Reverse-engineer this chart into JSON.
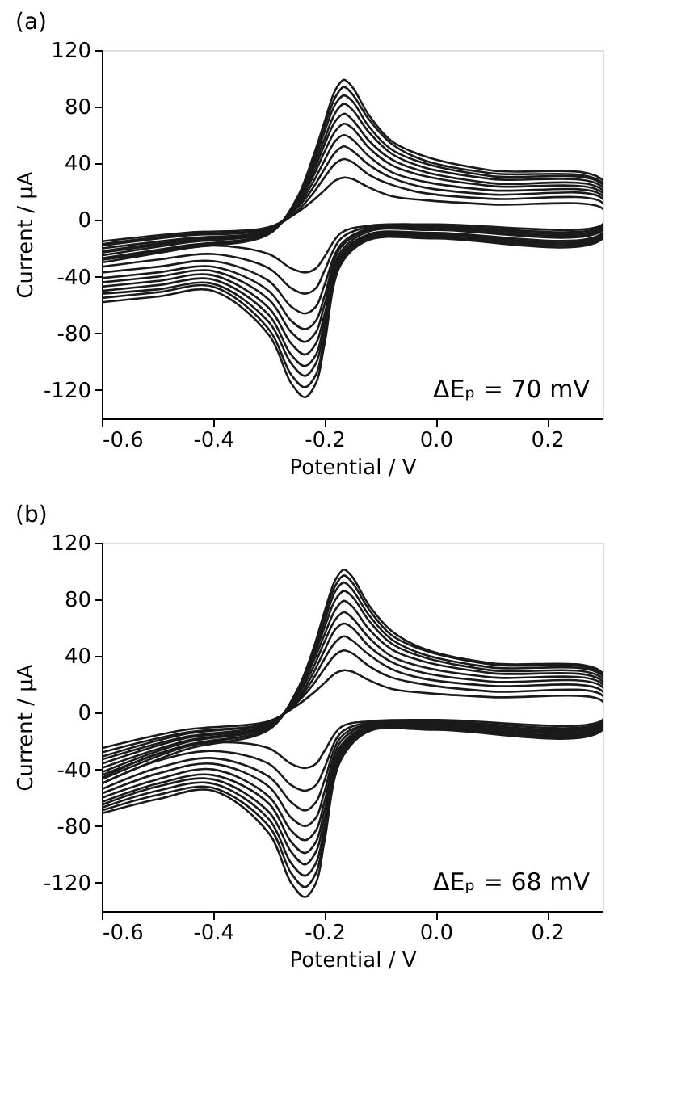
{
  "chart_data": [
    {
      "type": "line",
      "title": "(a)",
      "xlabel": "Potential / V",
      "ylabel": "Current / μA",
      "annotations": [
        "ΔEₚ = 70 mV"
      ],
      "xlim": [
        -0.6,
        0.3
      ],
      "ylim": [
        -140,
        120
      ],
      "xticks": [
        -0.6,
        -0.4,
        -0.2,
        {
          "value": 0,
          "label": "0.0"
        },
        0.2
      ],
      "yticks": [
        -120,
        -80,
        -40,
        0,
        40,
        80,
        120
      ],
      "grid": false,
      "x": [
        -0.6,
        -0.45,
        -0.3,
        -0.25,
        -0.22,
        -0.2,
        -0.18,
        -0.165,
        -0.15,
        -0.12,
        -0.08,
        -0.02,
        0.1,
        0.3,
        0.3,
        0.0,
        -0.12,
        -0.17,
        -0.2,
        -0.215,
        -0.235,
        -0.26,
        -0.3,
        -0.4,
        -0.5,
        -0.6
      ],
      "series": [
        {
          "color": "#1a1a1a",
          "values": [
            -15,
            -9,
            -5,
            5,
            14,
            21,
            28,
            30,
            29,
            23,
            17,
            14,
            11,
            8,
            -3,
            -3,
            -4,
            -9,
            -26,
            -34,
            -37,
            -34,
            -24,
            -18,
            -23,
            -28
          ]
        },
        {
          "color": "#1a1a1a",
          "values": [
            -17,
            -10,
            -6,
            6,
            19,
            30,
            40,
            43,
            41,
            32,
            25,
            19,
            15,
            12,
            -4,
            -4,
            -5,
            -13,
            -36,
            -48,
            -52,
            -48,
            -34,
            -24,
            -28,
            -33
          ]
        },
        {
          "color": "#1a1a1a",
          "values": [
            -18,
            -11,
            -6,
            8,
            23,
            36,
            48,
            52,
            49,
            39,
            30,
            23,
            18,
            15,
            -5,
            -5,
            -6,
            -17,
            -46,
            -61,
            -66,
            -61,
            -43,
            -29,
            -33,
            -37
          ]
        },
        {
          "color": "#1a1a1a",
          "values": [
            -20,
            -13,
            -7,
            9,
            27,
            42,
            56,
            60,
            57,
            45,
            34,
            27,
            21,
            17,
            -6,
            -6,
            -7,
            -19,
            -54,
            -71,
            -77,
            -71,
            -50,
            -33,
            -37,
            -41
          ]
        },
        {
          "color": "#1a1a1a",
          "values": [
            -22,
            -14,
            -7,
            10,
            31,
            48,
            63,
            68,
            65,
            51,
            39,
            31,
            24,
            19,
            -7,
            -7,
            -8,
            -22,
            -60,
            -79,
            -86,
            -79,
            -56,
            -36,
            -40,
            -44
          ]
        },
        {
          "color": "#1a1a1a",
          "values": [
            -23,
            -15,
            -8,
            11,
            34,
            53,
            70,
            75,
            71,
            56,
            43,
            34,
            26,
            21,
            -9,
            -9,
            -10,
            -24,
            -67,
            -87,
            -95,
            -87,
            -62,
            -39,
            -43,
            -47
          ]
        },
        {
          "color": "#1a1a1a",
          "values": [
            -25,
            -16,
            -8,
            12,
            37,
            57,
            76,
            82,
            78,
            62,
            47,
            37,
            29,
            23,
            -10,
            -10,
            -11,
            -26,
            -72,
            -95,
            -103,
            -95,
            -67,
            -42,
            -46,
            -50
          ]
        },
        {
          "color": "#1a1a1a",
          "values": [
            -27,
            -18,
            -9,
            13,
            40,
            62,
            82,
            88,
            84,
            66,
            50,
            40,
            31,
            25,
            -11,
            -11,
            -12,
            -28,
            -77,
            -101,
            -110,
            -101,
            -72,
            -45,
            -49,
            -52
          ]
        },
        {
          "color": "#1a1a1a",
          "values": [
            -28,
            -19,
            -9,
            14,
            42,
            66,
            87,
            94,
            89,
            71,
            54,
            42,
            33,
            26,
            -12,
            -12,
            -13,
            -30,
            -83,
            -109,
            -118,
            -109,
            -77,
            -47,
            -51,
            -55
          ]
        },
        {
          "color": "#1a1a1a",
          "values": [
            -30,
            -20,
            -10,
            15,
            45,
            69,
            92,
            99,
            94,
            74,
            56,
            45,
            35,
            28,
            -13,
            -13,
            -14,
            -31,
            -88,
            -115,
            -125,
            -115,
            -81,
            -50,
            -54,
            -58
          ]
        }
      ]
    },
    {
      "type": "line",
      "title": "(b)",
      "xlabel": "Potential / V",
      "ylabel": "Current / μA",
      "annotations": [
        "ΔEₚ = 68 mV"
      ],
      "xlim": [
        -0.6,
        0.3
      ],
      "ylim": [
        -140,
        120
      ],
      "xticks": [
        -0.6,
        -0.4,
        -0.2,
        {
          "value": 0,
          "label": "0.0"
        },
        0.2
      ],
      "yticks": [
        -120,
        -80,
        -40,
        0,
        40,
        80,
        120
      ],
      "grid": false,
      "x": [
        -0.6,
        -0.45,
        -0.3,
        -0.25,
        -0.22,
        -0.2,
        -0.18,
        -0.165,
        -0.15,
        -0.12,
        -0.08,
        -0.02,
        0.1,
        0.3,
        0.3,
        0.0,
        -0.12,
        -0.17,
        -0.2,
        -0.215,
        -0.235,
        -0.26,
        -0.3,
        -0.4,
        -0.5,
        -0.6
      ],
      "series": [
        {
          "color": "#1a1a1a",
          "values": [
            -25,
            -12,
            -6,
            5,
            14,
            21,
            28,
            30,
            29,
            23,
            17,
            14,
            11,
            8,
            -5,
            -5,
            -6,
            -10,
            -27,
            -36,
            -39,
            -36,
            -25,
            -21,
            -29,
            -46
          ]
        },
        {
          "color": "#1a1a1a",
          "values": [
            -28,
            -14,
            -7,
            7,
            20,
            31,
            41,
            44,
            42,
            33,
            25,
            20,
            15,
            12,
            -6,
            -6,
            -7,
            -14,
            -39,
            -51,
            -55,
            -51,
            -36,
            -27,
            -34,
            -50
          ]
        },
        {
          "color": "#1a1a1a",
          "values": [
            -31,
            -15,
            -7,
            8,
            24,
            38,
            50,
            54,
            51,
            41,
            31,
            24,
            19,
            15,
            -7,
            -7,
            -8,
            -17,
            -48,
            -63,
            -69,
            -63,
            -45,
            -32,
            -39,
            -54
          ]
        },
        {
          "color": "#1a1a1a",
          "values": [
            -33,
            -17,
            -8,
            9,
            28,
            44,
            59,
            63,
            60,
            47,
            36,
            28,
            22,
            18,
            -7,
            -7,
            -8,
            -20,
            -56,
            -74,
            -80,
            -74,
            -52,
            -36,
            -43,
            -57
          ]
        },
        {
          "color": "#1a1a1a",
          "values": [
            -36,
            -18,
            -9,
            11,
            32,
            50,
            66,
            71,
            67,
            53,
            40,
            32,
            25,
            20,
            -8,
            -8,
            -9,
            -23,
            -63,
            -83,
            -90,
            -83,
            -59,
            -40,
            -47,
            -60
          ]
        },
        {
          "color": "#1a1a1a",
          "values": [
            -39,
            -20,
            -9,
            12,
            36,
            55,
            73,
            79,
            75,
            59,
            45,
            36,
            28,
            22,
            -9,
            -9,
            -10,
            -25,
            -69,
            -91,
            -99,
            -91,
            -64,
            -44,
            -50,
            -63
          ]
        },
        {
          "color": "#1a1a1a",
          "values": [
            -42,
            -21,
            -10,
            13,
            39,
            60,
            80,
            86,
            82,
            65,
            49,
            39,
            30,
            24,
            -10,
            -10,
            -11,
            -27,
            -75,
            -98,
            -107,
            -98,
            -70,
            -47,
            -52,
            -65
          ]
        },
        {
          "color": "#1a1a1a",
          "values": [
            -44,
            -23,
            -11,
            14,
            41,
            64,
            86,
            92,
            87,
            69,
            52,
            41,
            32,
            26,
            -10,
            -10,
            -11,
            -29,
            -81,
            -106,
            -115,
            -106,
            -75,
            -50,
            -55,
            -67
          ]
        },
        {
          "color": "#1a1a1a",
          "values": [
            -47,
            -24,
            -11,
            15,
            44,
            68,
            90,
            97,
            92,
            73,
            55,
            44,
            34,
            27,
            -11,
            -11,
            -12,
            -31,
            -86,
            -113,
            -123,
            -113,
            -80,
            -53,
            -58,
            -69
          ]
        },
        {
          "color": "#1a1a1a",
          "values": [
            -50,
            -26,
            -12,
            15,
            45,
            71,
            94,
            101,
            96,
            76,
            58,
            45,
            35,
            28,
            -12,
            -12,
            -13,
            -33,
            -91,
            -120,
            -130,
            -120,
            -85,
            -55,
            -61,
            -71
          ]
        }
      ]
    }
  ]
}
